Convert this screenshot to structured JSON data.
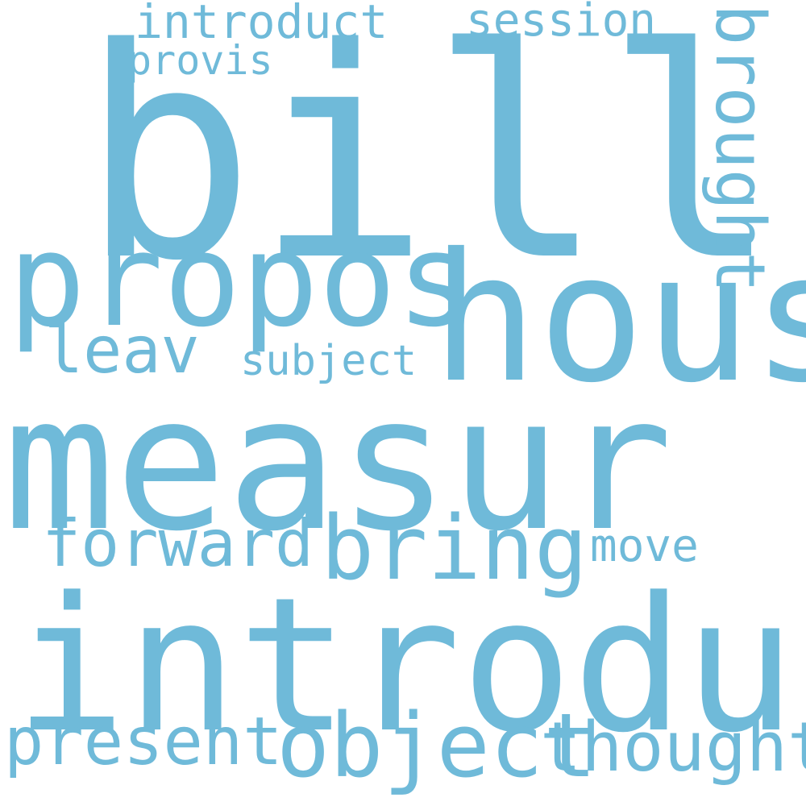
{
  "colors": {
    "background": "#ffffff",
    "word": "#6fbad9"
  },
  "words": {
    "bill": "bill",
    "hous": "hous",
    "propos": "propos",
    "measur": "measur",
    "introduc": "introduc",
    "brought": "brought",
    "leav": "leav",
    "subject": "subject",
    "forward": "forward",
    "bring": "bring",
    "move": "move",
    "present": "present",
    "object": "object",
    "thought": "thought",
    "introduct": "introduct",
    "session": "session",
    "provis": "provis"
  }
}
